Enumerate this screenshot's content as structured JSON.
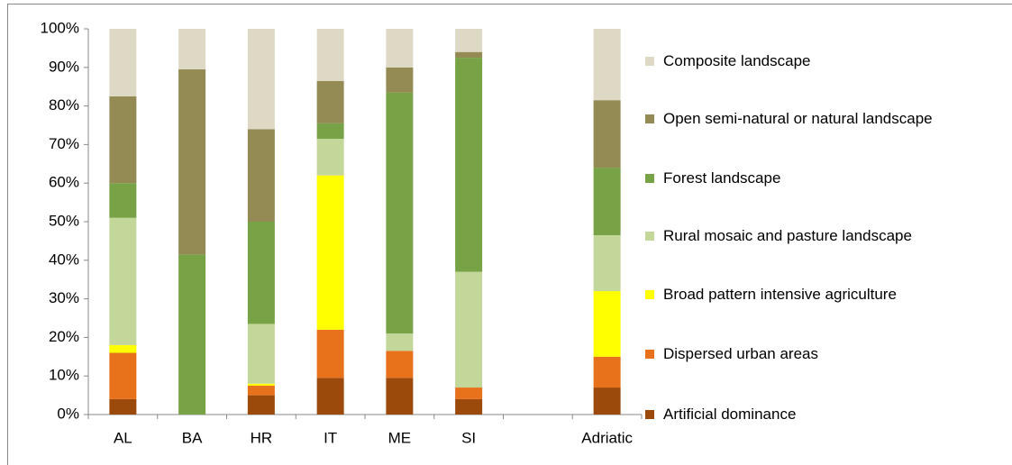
{
  "chart_data": {
    "type": "stacked_bar",
    "categories": [
      "AL",
      "BA",
      "HR",
      "IT",
      "ME",
      "SI",
      null,
      "Adriatic"
    ],
    "series": [
      {
        "name": "Artificial dominance",
        "color": "#9c4a0c",
        "values": [
          4,
          0,
          5,
          9.5,
          9.5,
          4,
          null,
          7
        ]
      },
      {
        "name": "Dispersed urban areas",
        "color": "#e8711b",
        "values": [
          12,
          0,
          2.5,
          12.5,
          7,
          3,
          null,
          8
        ]
      },
      {
        "name": "Broad pattern intensive agriculture",
        "color": "#ffff00",
        "values": [
          2,
          0,
          0.5,
          40,
          0,
          0,
          null,
          17
        ]
      },
      {
        "name": "Rural mosaic and pasture landscape",
        "color": "#c4d79b",
        "values": [
          33,
          0,
          15.5,
          9.5,
          4.5,
          30,
          null,
          14.5
        ]
      },
      {
        "name": "Forest landscape",
        "color": "#77a245",
        "values": [
          9,
          41.5,
          26.5,
          4,
          62.5,
          55.5,
          null,
          17.5
        ]
      },
      {
        "name": "Open semi-natural or natural landscape",
        "color": "#948a54",
        "values": [
          22.5,
          48,
          24,
          11,
          6.5,
          1.5,
          null,
          17.5
        ]
      },
      {
        "name": "Composite landscape",
        "color": "#ddd9c4",
        "values": [
          17.5,
          10.5,
          26,
          13.5,
          10,
          6,
          null,
          18.5
        ]
      }
    ],
    "ylim": [
      0,
      100
    ],
    "yticks": [
      {
        "value": 0,
        "label": "0%"
      },
      {
        "value": 10,
        "label": "10%"
      },
      {
        "value": 20,
        "label": "20%"
      },
      {
        "value": 30,
        "label": "30%"
      },
      {
        "value": 40,
        "label": "40%"
      },
      {
        "value": 50,
        "label": "50%"
      },
      {
        "value": 60,
        "label": "60%"
      },
      {
        "value": 70,
        "label": "70%"
      },
      {
        "value": 80,
        "label": "80%"
      },
      {
        "value": 90,
        "label": "90%"
      },
      {
        "value": 100,
        "label": "100%"
      }
    ],
    "grid": false,
    "legend": "right"
  }
}
